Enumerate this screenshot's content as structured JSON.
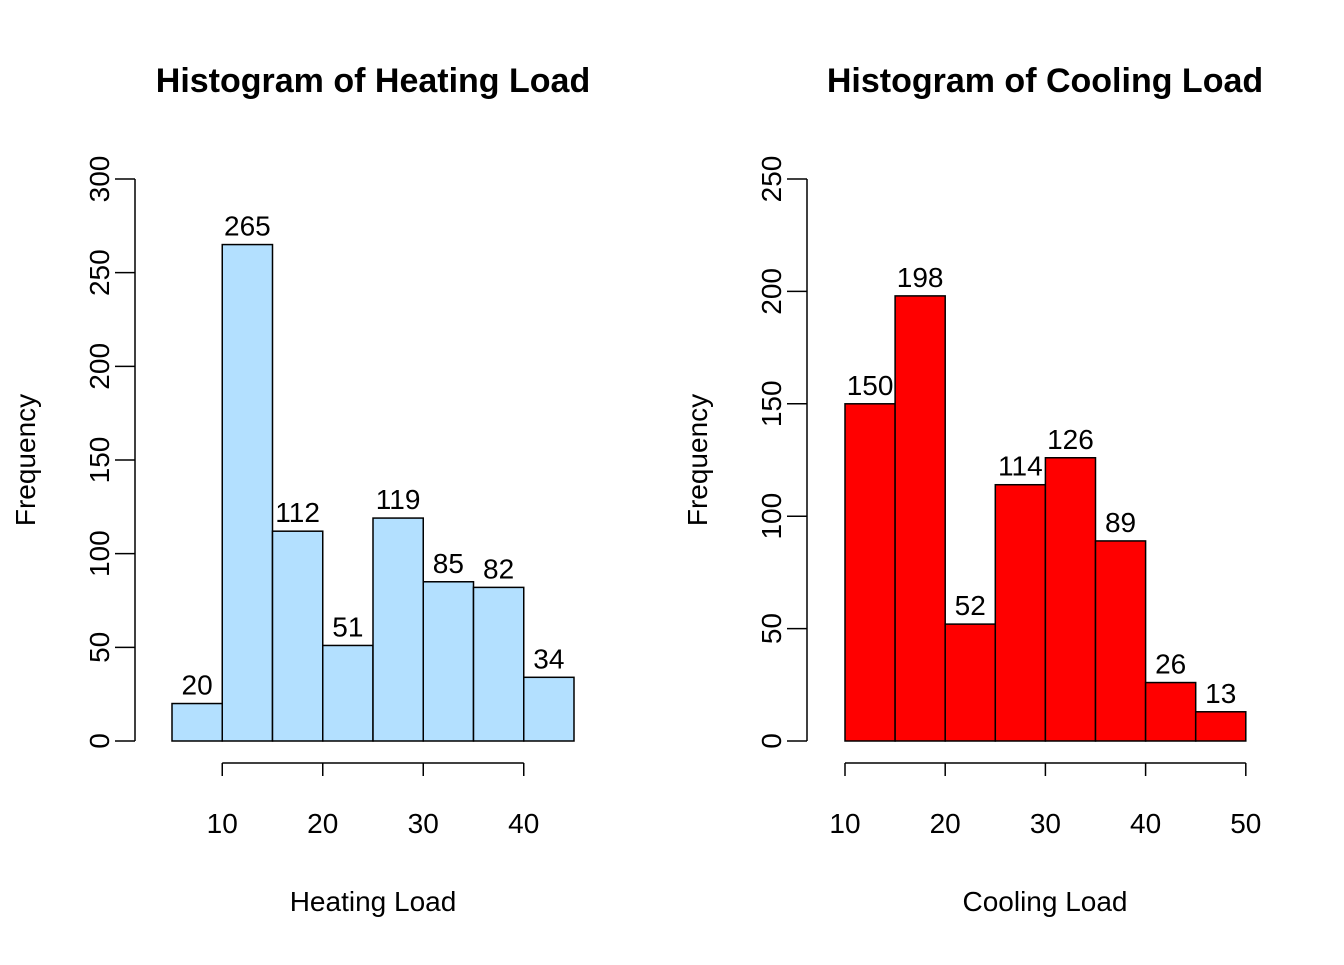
{
  "chart_data": [
    {
      "type": "bar",
      "title": "Histogram of Heating Load",
      "xlabel": "Heating Load",
      "ylabel": "Frequency",
      "bin_edges": [
        5,
        10,
        15,
        20,
        25,
        30,
        35,
        40,
        45
      ],
      "values": [
        20,
        265,
        112,
        51,
        119,
        85,
        82,
        34
      ],
      "xlim": [
        10,
        40
      ],
      "x_ticks": [
        10,
        20,
        30,
        40
      ],
      "ylim": [
        0,
        300
      ],
      "y_ticks": [
        0,
        50,
        100,
        150,
        200,
        250,
        300
      ],
      "bar_color": "#b3e0ff",
      "grid": false
    },
    {
      "type": "bar",
      "title": "Histogram of Cooling Load",
      "xlabel": "Cooling Load",
      "ylabel": "Frequency",
      "bin_edges": [
        10,
        15,
        20,
        25,
        30,
        35,
        40,
        45,
        50
      ],
      "values": [
        150,
        198,
        52,
        114,
        126,
        89,
        26,
        13
      ],
      "xlim": [
        10,
        50
      ],
      "x_ticks": [
        10,
        20,
        30,
        40,
        50
      ],
      "ylim": [
        0,
        250
      ],
      "y_ticks": [
        0,
        50,
        100,
        150,
        200,
        250
      ],
      "bar_color": "#ff0000",
      "grid": false
    }
  ]
}
